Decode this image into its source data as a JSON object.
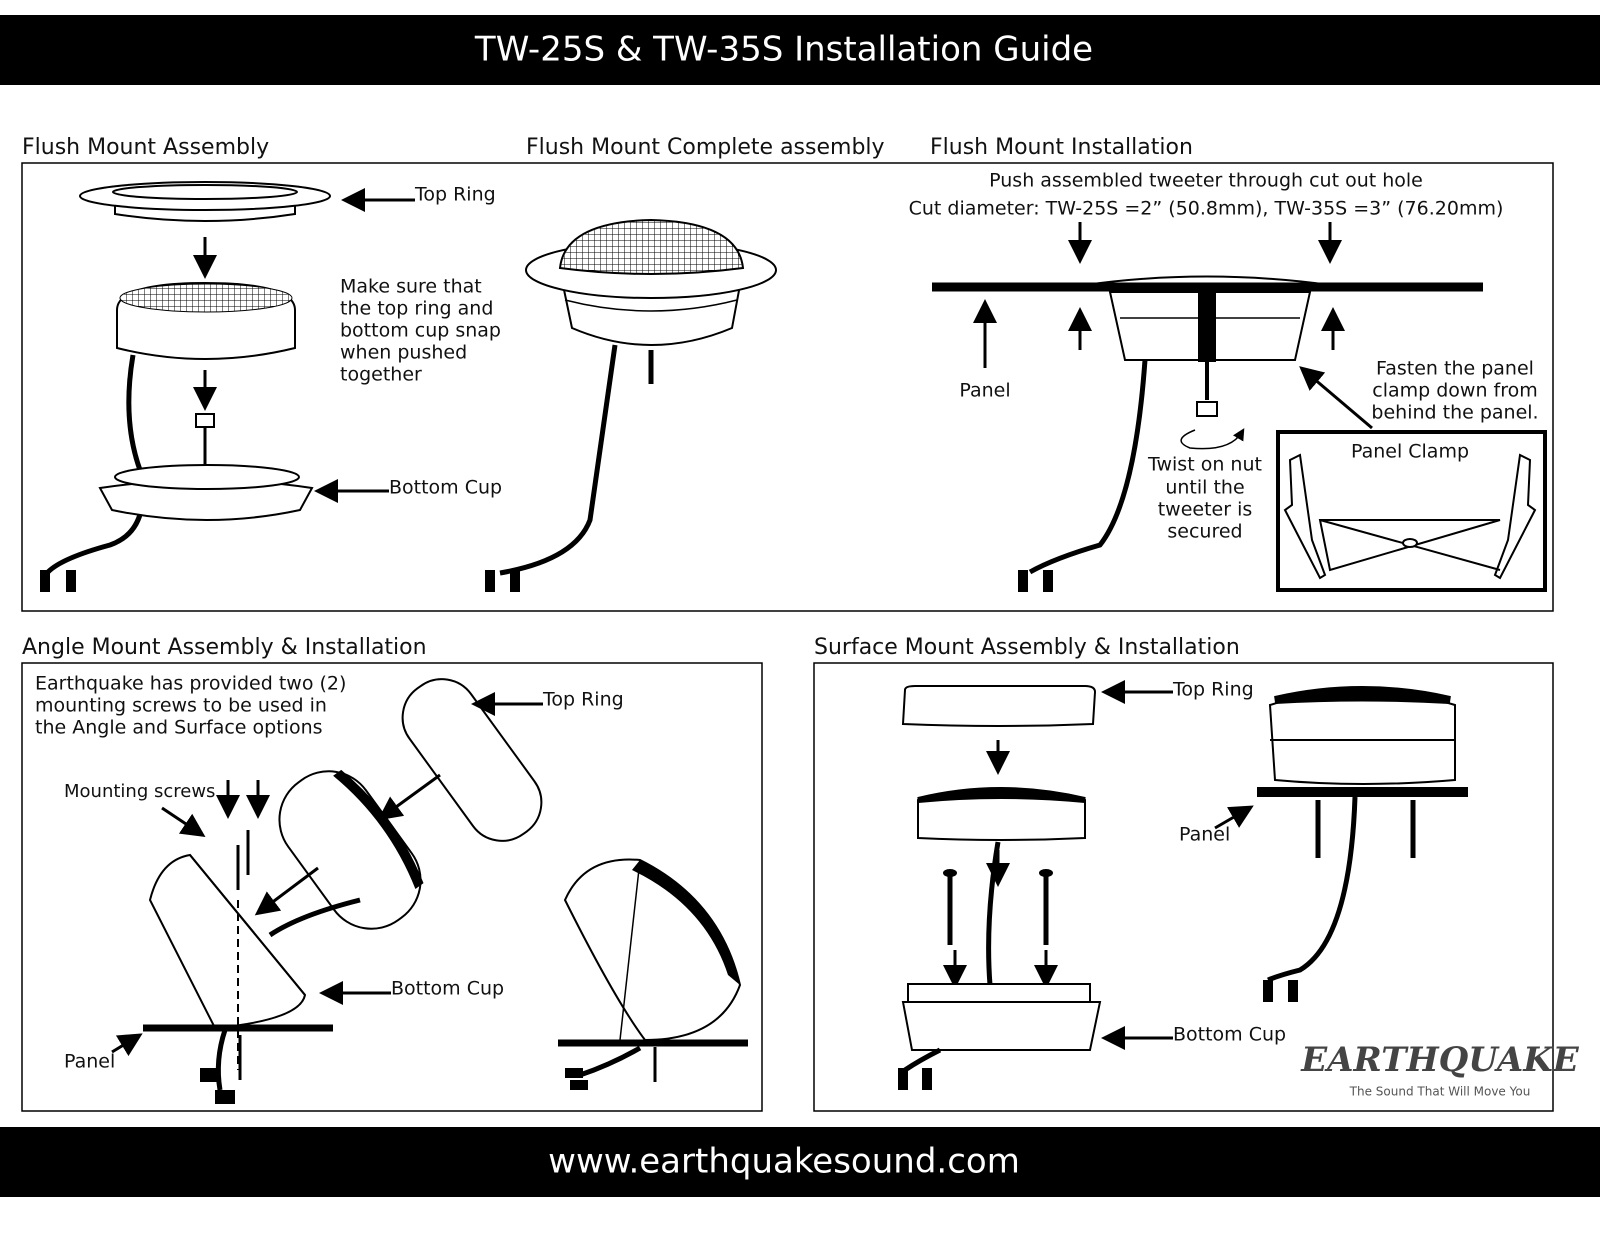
{
  "header": {
    "title": "TW-25S & TW-35S Installation Guide"
  },
  "sections": [
    {
      "title": "Flush Mount Assembly",
      "top_ring": "Top Ring",
      "note": [
        "Make sure that",
        "the top ring and",
        "bottom cup snap",
        "when pushed",
        "together"
      ],
      "bottom_cup": "Bottom Cup"
    },
    {
      "title": "Flush Mount Complete assembly"
    },
    {
      "title": "Flush Mount Installation",
      "instructions": [
        "Push assembled tweeter through cut out hole",
        "Cut diameter: TW-25S =2” (50.8mm), TW-35S =3” (76.20mm)"
      ],
      "panel": "Panel",
      "twist": [
        "Twist on nut",
        "until the",
        "tweeter is",
        "secured"
      ],
      "fasten": [
        "Fasten the panel",
        "clamp down from",
        "behind the panel."
      ],
      "clamp": "Panel Clamp"
    },
    {
      "title": "Angle Mount Assembly & Installation",
      "note": [
        "Earthquake has provided two (2)",
        "mounting screws to be used in",
        "the Angle and Surface options"
      ],
      "screws": "Mounting screws",
      "top_ring": "Top Ring",
      "bottom_cup": "Bottom Cup",
      "panel": "Panel"
    },
    {
      "title": "Surface Mount Assembly & Installation",
      "top_ring": "Top Ring",
      "panel": "Panel",
      "bottom_cup": "Bottom Cup"
    }
  ],
  "logo": {
    "name": "EARTHQUAKE",
    "tagline": "The Sound That Will Move You"
  },
  "footer": {
    "url": "www.earthquakesound.com"
  }
}
